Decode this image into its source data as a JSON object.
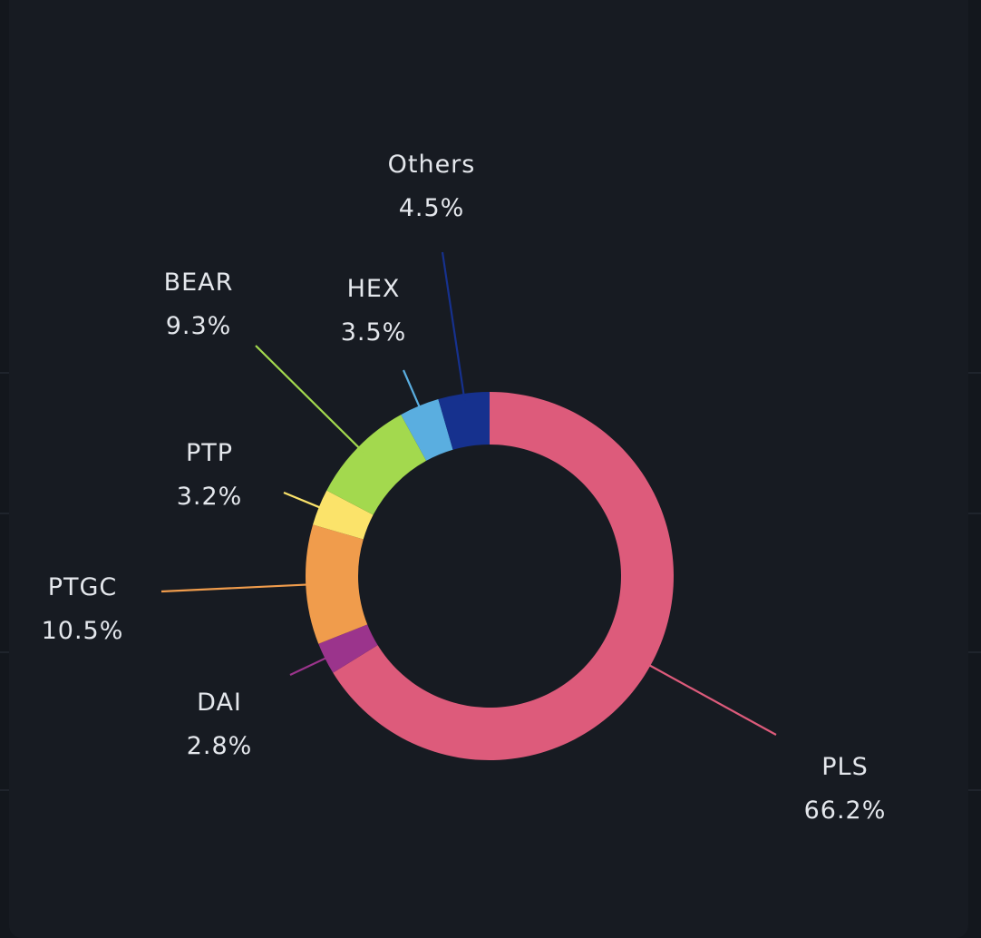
{
  "chart_data": {
    "type": "pie",
    "variant": "donut",
    "slices": [
      {
        "label": "PLS",
        "value": 66.2,
        "value_text": "66.2%",
        "color": "#dd5b7b"
      },
      {
        "label": "DAI",
        "value": 2.8,
        "value_text": "2.8%",
        "color": "#9b348c"
      },
      {
        "label": "PTGC",
        "value": 10.5,
        "value_text": "10.5%",
        "color": "#f09c4c"
      },
      {
        "label": "PTP",
        "value": 3.2,
        "value_text": "3.2%",
        "color": "#fbe36a"
      },
      {
        "label": "BEAR",
        "value": 9.3,
        "value_text": "9.3%",
        "color": "#a3d94e"
      },
      {
        "label": "HEX",
        "value": 3.5,
        "value_text": "3.5%",
        "color": "#5aaee0"
      },
      {
        "label": "Others",
        "value": 4.5,
        "value_text": "4.5%",
        "color": "#16318e"
      }
    ],
    "start_angle": "top",
    "direction": "clockwise",
    "legend": "none"
  },
  "colors": {
    "background": "#171b22",
    "label_text": "#e4e7ec"
  }
}
